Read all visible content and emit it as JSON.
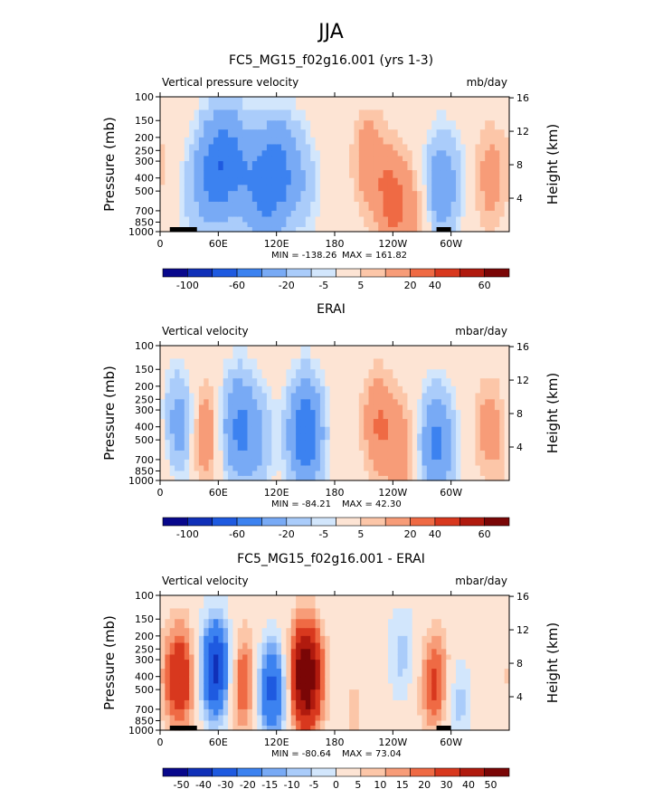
{
  "figure": {
    "title": "JJA"
  },
  "colorbar_colors": [
    "#08088c",
    "#1030b8",
    "#1e5ae0",
    "#3c82f0",
    "#78aaf5",
    "#aaccfa",
    "#d2e6fc",
    "#fde4d4",
    "#fcc6a8",
    "#f79c78",
    "#ef6a44",
    "#d8381e",
    "#b01a0e",
    "#7a0606"
  ],
  "chart_data": [
    {
      "type": "heatmap",
      "title": "FC5_MG15_f02g16.001 (yrs 1-3)",
      "variable_label": "Vertical pressure velocity",
      "units": "mb/day",
      "ylabel": "Pressure (mb)",
      "ylabel_right": "Height (km)",
      "x_ticks": [
        "0",
        "60E",
        "120E",
        "180",
        "120W",
        "60W"
      ],
      "y_ticks": [
        "100",
        "150",
        "200",
        "250",
        "300",
        "400",
        "500",
        "700",
        "850",
        "1000"
      ],
      "y_right_ticks": [
        "16",
        "12",
        "8",
        "4"
      ],
      "stats": {
        "min_text": "MIN = -138.26",
        "max_text": "MAX = 161.82",
        "min": -138.26,
        "max": 161.82
      },
      "colorbar_labels": [
        "-100",
        "-60",
        "-20",
        "-5",
        "5",
        "20",
        "40",
        "60"
      ],
      "topography": true,
      "anomalies": [
        {
          "lon": 32,
          "p": 500,
          "value": -12
        },
        {
          "lon": 55,
          "p": 350,
          "value": -45
        },
        {
          "lon": 75,
          "p": 300,
          "value": -40
        },
        {
          "lon": 100,
          "p": 500,
          "value": -30
        },
        {
          "lon": 115,
          "p": 400,
          "value": -35
        },
        {
          "lon": 130,
          "p": 350,
          "value": -25
        },
        {
          "lon": 150,
          "p": 450,
          "value": -12
        },
        {
          "lon": 215,
          "p": 300,
          "value": 16
        },
        {
          "lon": 240,
          "p": 600,
          "value": 24
        },
        {
          "lon": 270,
          "p": 700,
          "value": 16
        },
        {
          "lon": 285,
          "p": 500,
          "value": -30
        },
        {
          "lon": 300,
          "p": 400,
          "value": -12
        },
        {
          "lon": 340,
          "p": 400,
          "value": 14
        },
        {
          "lon": 10,
          "p": 300,
          "value": 5
        }
      ]
    },
    {
      "type": "heatmap",
      "title": "ERAI",
      "variable_label": "Vertical velocity",
      "units": "mbar/day",
      "ylabel": "Pressure (mb)",
      "ylabel_right": "Height (km)",
      "x_ticks": [
        "0",
        "60E",
        "120E",
        "180",
        "120W",
        "60W"
      ],
      "y_ticks": [
        "100",
        "150",
        "200",
        "250",
        "300",
        "400",
        "500",
        "700",
        "850",
        "1000"
      ],
      "y_right_ticks": [
        "16",
        "12",
        "8",
        "4"
      ],
      "stats": {
        "min_text": "MIN = -84.21",
        "max_text": "MAX = 42.30",
        "min": -84.21,
        "max": 42.3
      },
      "colorbar_labels": [
        "-100",
        "-60",
        "-20",
        "-5",
        "5",
        "20",
        "40",
        "60"
      ],
      "topography": false,
      "anomalies": [
        {
          "lon": 20,
          "p": 400,
          "value": -30
        },
        {
          "lon": 45,
          "p": 450,
          "value": 20
        },
        {
          "lon": 80,
          "p": 400,
          "value": -40
        },
        {
          "lon": 100,
          "p": 500,
          "value": -20
        },
        {
          "lon": 150,
          "p": 450,
          "value": -60
        },
        {
          "lon": 225,
          "p": 380,
          "value": 20
        },
        {
          "lon": 250,
          "p": 600,
          "value": 15
        },
        {
          "lon": 285,
          "p": 550,
          "value": -45
        },
        {
          "lon": 340,
          "p": 400,
          "value": 14
        },
        {
          "lon": 5,
          "p": 800,
          "value": 6
        }
      ]
    },
    {
      "type": "heatmap",
      "title": "FC5_MG15_f02g16.001 - ERAI",
      "variable_label": "Vertical velocity",
      "units": "mbar/day",
      "ylabel": "Pressure (mb)",
      "ylabel_right": "Height (km)",
      "x_ticks": [
        "0",
        "60E",
        "120E",
        "180",
        "120W",
        "60W"
      ],
      "y_ticks": [
        "100",
        "150",
        "200",
        "250",
        "300",
        "400",
        "500",
        "700",
        "850",
        "1000"
      ],
      "y_right_ticks": [
        "16",
        "12",
        "8",
        "4"
      ],
      "stats": {
        "min_text": "MIN = -80.64",
        "max_text": "MAX = 73.04",
        "min": -80.64,
        "max": 73.04
      },
      "colorbar_labels": [
        "-50",
        "-40",
        "-30",
        "-20",
        "-15",
        "-10",
        "-5",
        "0",
        "5",
        "10",
        "15",
        "20",
        "30",
        "40",
        "50"
      ],
      "topography": true,
      "anomalies": [
        {
          "lon": 20,
          "p": 400,
          "value": 30
        },
        {
          "lon": 58,
          "p": 350,
          "value": -45
        },
        {
          "lon": 85,
          "p": 450,
          "value": 25
        },
        {
          "lon": 115,
          "p": 500,
          "value": -35
        },
        {
          "lon": 150,
          "p": 400,
          "value": 55
        },
        {
          "lon": 250,
          "p": 270,
          "value": -12
        },
        {
          "lon": 285,
          "p": 450,
          "value": 25
        },
        {
          "lon": 305,
          "p": 600,
          "value": -15
        },
        {
          "lon": 200,
          "p": 700,
          "value": 6
        }
      ]
    }
  ]
}
